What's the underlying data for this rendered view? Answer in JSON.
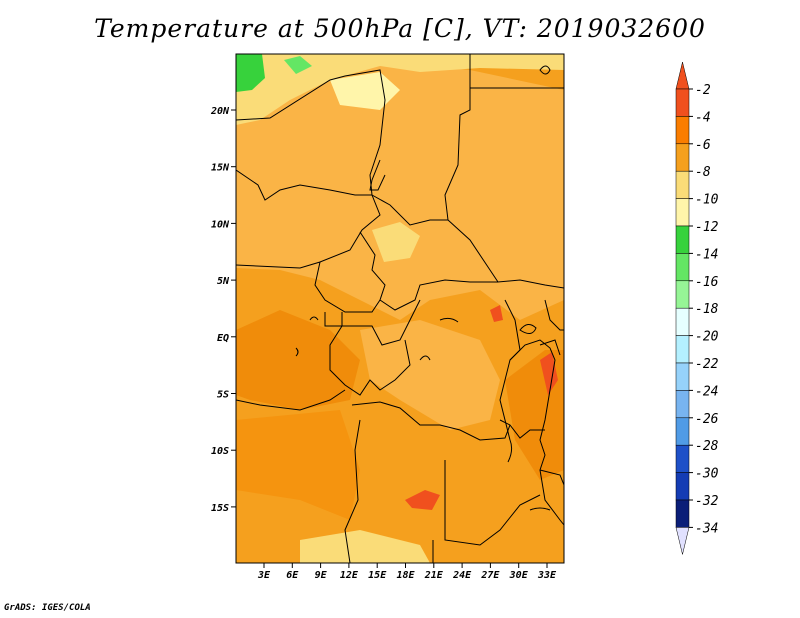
{
  "title": "Temperature at 500hPa [C], VT: 2019032600",
  "footer": "GrADS: IGES/COLA",
  "map": {
    "lat_labels": [
      "20N",
      "15N",
      "10N",
      "5N",
      "EQ",
      "5S",
      "10S",
      "15S"
    ],
    "lon_labels": [
      "3E",
      "6E",
      "9E",
      "12E",
      "15E",
      "18E",
      "21E",
      "24E",
      "27E",
      "30E",
      "33E"
    ]
  },
  "colorbar": {
    "labels": [
      "-2",
      "-4",
      "-6",
      "-8",
      "-10",
      "-12",
      "-14",
      "-16",
      "-18",
      "-20",
      "-22",
      "-24",
      "-26",
      "-28",
      "-30",
      "-32",
      "-34"
    ],
    "colors": [
      "#f0501e",
      "#fa7d00",
      "#f5a01e",
      "#fac350",
      "#fadc78",
      "#fff5aa",
      "#37d23c",
      "#64e664",
      "#96f596",
      "#c8fac8",
      "#e6ffff",
      "#b4f0ff",
      "#96d2fa",
      "#78b4f0",
      "#509be6",
      "#3c78dc",
      "#1e50c8",
      "#143cb4",
      "#0a1e78"
    ],
    "top_arrow_color": "#f0501e",
    "bottom_arrow_color": "#e1e1ff"
  }
}
